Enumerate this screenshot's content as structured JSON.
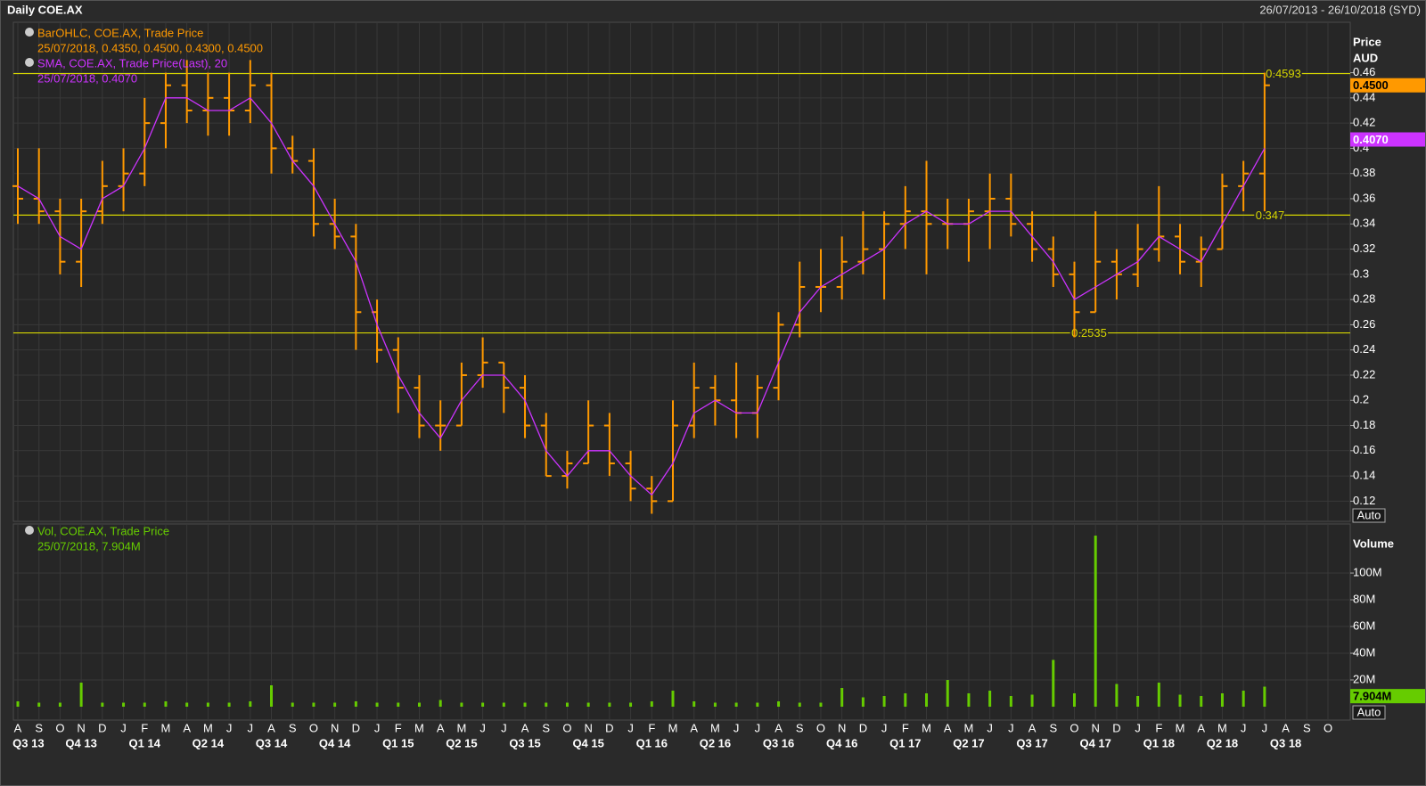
{
  "chart_data": {
    "type": "ohlc",
    "title": "Daily COE.AX",
    "date_range": "26/07/2013 - 26/10/2018 (SYD)",
    "grid": true,
    "categories": [
      "A",
      "S",
      "O",
      "N",
      "D",
      "J",
      "F",
      "M",
      "A",
      "M",
      "J",
      "J",
      "A",
      "S",
      "O",
      "N",
      "D",
      "J",
      "F",
      "M",
      "A",
      "M",
      "J",
      "J",
      "A",
      "S",
      "O",
      "N",
      "D",
      "J",
      "F",
      "M",
      "A",
      "M",
      "J",
      "J",
      "A",
      "S",
      "O",
      "N",
      "D",
      "J",
      "F",
      "M",
      "A",
      "M",
      "J",
      "J",
      "A",
      "S",
      "O",
      "N",
      "D",
      "J",
      "F",
      "M",
      "A",
      "M",
      "J",
      "J",
      "A",
      "S",
      "O"
    ],
    "quarters": [
      "Q3 13",
      "Q4 13",
      "Q1 14",
      "Q2 14",
      "Q3 14",
      "Q4 14",
      "Q1 15",
      "Q2 15",
      "Q3 15",
      "Q4 15",
      "Q1 16",
      "Q2 16",
      "Q3 16",
      "Q4 16",
      "Q1 17",
      "Q2 17",
      "Q3 17",
      "Q4 17",
      "Q1 18",
      "Q2 18",
      "Q3 18"
    ],
    "y_label": "Price",
    "y_unit": "AUD",
    "ylim": [
      0.104,
      0.5
    ],
    "yticks": [
      0.12,
      0.14,
      0.16,
      0.18,
      0.2,
      0.22,
      0.24,
      0.26,
      0.28,
      0.3,
      0.32,
      0.34,
      0.36,
      0.38,
      0.4,
      0.42,
      0.44,
      0.46
    ],
    "levels": [
      0.4593,
      0.347,
      0.2535
    ],
    "level_color": "#d6d600",
    "last_values": [
      {
        "value": 0.45,
        "label": "0.4500"
      },
      {
        "value": 0.407,
        "label": "0.4070"
      }
    ],
    "auto": "Auto",
    "series": [
      {
        "name": "BarOHLC, COE.AX, Trade Price",
        "legend_values": "25/07/2018, 0.4350, 0.4500, 0.4300, 0.4500",
        "color": "#ff9900",
        "open": [
          0.37,
          0.36,
          0.35,
          0.31,
          0.35,
          0.37,
          0.38,
          0.42,
          0.45,
          0.43,
          0.44,
          0.43,
          0.45,
          0.4,
          0.39,
          0.34,
          0.33,
          0.27,
          0.24,
          0.21,
          0.18,
          0.18,
          0.22,
          0.23,
          0.21,
          0.18,
          0.14,
          0.15,
          0.18,
          0.15,
          0.13,
          0.12,
          0.18,
          0.21,
          0.2,
          0.19,
          0.21,
          0.26,
          0.29,
          0.29,
          0.31,
          0.32,
          0.34,
          0.35,
          0.34,
          0.34,
          0.35,
          0.36,
          0.34,
          0.32,
          0.3,
          0.27,
          0.31,
          0.3,
          0.32,
          0.33,
          0.31,
          0.32,
          0.37,
          0.38,
          null,
          null,
          null
        ],
        "high": [
          0.4,
          0.4,
          0.36,
          0.36,
          0.39,
          0.4,
          0.44,
          0.46,
          0.47,
          0.46,
          0.46,
          0.47,
          0.46,
          0.41,
          0.4,
          0.36,
          0.34,
          0.28,
          0.25,
          0.22,
          0.2,
          0.23,
          0.25,
          0.23,
          0.22,
          0.19,
          0.16,
          0.2,
          0.19,
          0.16,
          0.14,
          0.2,
          0.23,
          0.22,
          0.23,
          0.22,
          0.27,
          0.31,
          0.32,
          0.33,
          0.35,
          0.35,
          0.37,
          0.39,
          0.36,
          0.36,
          0.38,
          0.38,
          0.35,
          0.33,
          0.31,
          0.35,
          0.32,
          0.34,
          0.37,
          0.34,
          0.33,
          0.38,
          0.39,
          0.46,
          null,
          null,
          null
        ],
        "low": [
          0.34,
          0.34,
          0.3,
          0.29,
          0.34,
          0.35,
          0.37,
          0.4,
          0.42,
          0.41,
          0.41,
          0.42,
          0.38,
          0.38,
          0.33,
          0.32,
          0.24,
          0.23,
          0.19,
          0.17,
          0.16,
          0.18,
          0.21,
          0.19,
          0.17,
          0.14,
          0.13,
          0.15,
          0.14,
          0.12,
          0.11,
          0.12,
          0.17,
          0.18,
          0.17,
          0.17,
          0.2,
          0.25,
          0.27,
          0.28,
          0.3,
          0.28,
          0.32,
          0.3,
          0.32,
          0.31,
          0.32,
          0.33,
          0.31,
          0.29,
          0.25,
          0.27,
          0.28,
          0.29,
          0.31,
          0.3,
          0.29,
          0.32,
          0.35,
          0.35,
          null,
          null,
          null
        ],
        "close": [
          0.36,
          0.35,
          0.31,
          0.35,
          0.37,
          0.38,
          0.42,
          0.45,
          0.43,
          0.44,
          0.43,
          0.45,
          0.4,
          0.39,
          0.34,
          0.33,
          0.27,
          0.24,
          0.21,
          0.18,
          0.18,
          0.22,
          0.23,
          0.21,
          0.18,
          0.14,
          0.15,
          0.18,
          0.15,
          0.13,
          0.12,
          0.18,
          0.21,
          0.2,
          0.19,
          0.21,
          0.26,
          0.29,
          0.29,
          0.31,
          0.32,
          0.34,
          0.35,
          0.34,
          0.34,
          0.35,
          0.36,
          0.34,
          0.32,
          0.3,
          0.27,
          0.31,
          0.3,
          0.32,
          0.33,
          0.31,
          0.32,
          0.37,
          0.38,
          0.45,
          null,
          null,
          null
        ]
      },
      {
        "name": "SMA, COE.AX, Trade Price(Last), 20",
        "legend_values": "25/07/2018, 0.4070",
        "color": "#cc33ff",
        "values": [
          0.37,
          0.36,
          0.33,
          0.32,
          0.36,
          0.37,
          0.4,
          0.44,
          0.44,
          0.43,
          0.43,
          0.44,
          0.42,
          0.39,
          0.37,
          0.34,
          0.31,
          0.26,
          0.22,
          0.19,
          0.17,
          0.2,
          0.22,
          0.22,
          0.2,
          0.16,
          0.14,
          0.16,
          0.16,
          0.14,
          0.125,
          0.15,
          0.19,
          0.2,
          0.19,
          0.19,
          0.23,
          0.27,
          0.29,
          0.3,
          0.31,
          0.32,
          0.34,
          0.35,
          0.34,
          0.34,
          0.35,
          0.35,
          0.33,
          0.31,
          0.28,
          0.29,
          0.3,
          0.31,
          0.33,
          0.32,
          0.31,
          0.34,
          0.37,
          0.4,
          null,
          null,
          null
        ]
      }
    ],
    "volume": {
      "type": "bar",
      "y_label": "Volume",
      "name": "Vol, COE.AX, Trade Price",
      "legend_values": "25/07/2018, 7.904M",
      "color": "#66cc00",
      "values": [
        4000000,
        3000000,
        3000000,
        18000000,
        3000000,
        3000000,
        3000000,
        4000000,
        3000000,
        3000000,
        3000000,
        4000000,
        16000000,
        3000000,
        3000000,
        3000000,
        4000000,
        3000000,
        3000000,
        3000000,
        5000000,
        3000000,
        3000000,
        3000000,
        3000000,
        3000000,
        3000000,
        3000000,
        3000000,
        3000000,
        4000000,
        12000000,
        4000000,
        3000000,
        3000000,
        3000000,
        4000000,
        3000000,
        3000000,
        14000000,
        7000000,
        8000000,
        10000000,
        10000000,
        20000000,
        10000000,
        12000000,
        8000000,
        9000000,
        35000000,
        10000000,
        128000000,
        17000000,
        8000000,
        18000000,
        9000000,
        8000000,
        10000000,
        12000000,
        15000000,
        null,
        null,
        null
      ],
      "ylim": [
        -10000000,
        136700000
      ],
      "yticks": [
        {
          "value": 20000000,
          "label": "20M"
        },
        {
          "value": 40000000,
          "label": "40M"
        },
        {
          "value": 60000000,
          "label": "60M"
        },
        {
          "value": 80000000,
          "label": "80M"
        },
        {
          "value": 100000000,
          "label": "100M"
        }
      ],
      "last_value": {
        "value": 7904000,
        "label": "7.904M"
      },
      "auto": "Auto"
    }
  }
}
